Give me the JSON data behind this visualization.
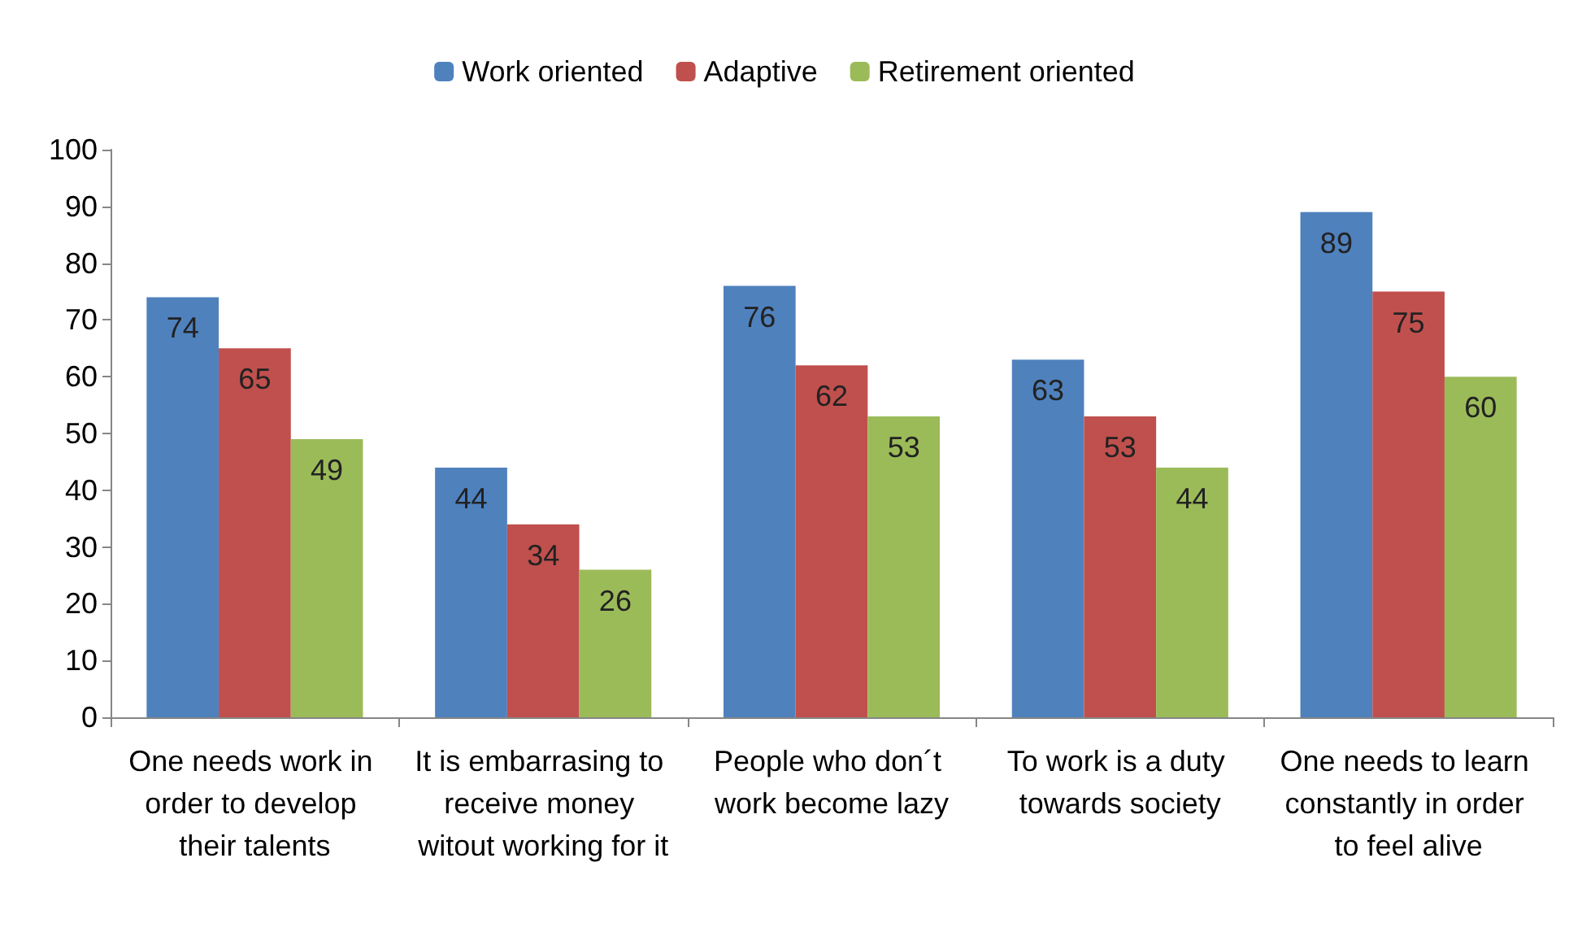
{
  "chart_data": {
    "type": "bar",
    "categories": [
      "One needs work in order to develop their talents",
      "It is embarrasing to receive money witout working for it",
      "People who don´t work become lazy",
      "To work is a duty towards society",
      "One needs to learn constantly in order to feel alive"
    ],
    "series": [
      {
        "name": "Work oriented",
        "color": "#4f81bd",
        "values": [
          74,
          44,
          76,
          63,
          89
        ]
      },
      {
        "name": "Adaptive",
        "color": "#c0504d",
        "values": [
          65,
          34,
          62,
          53,
          75
        ]
      },
      {
        "name": "Retirement oriented",
        "color": "#9bbb59",
        "values": [
          49,
          26,
          53,
          44,
          60
        ]
      }
    ],
    "ylim": [
      0,
      100
    ],
    "yticks": [
      0,
      10,
      20,
      30,
      40,
      50,
      60,
      70,
      80,
      90,
      100
    ],
    "grid": false,
    "legend": "top",
    "data_labels": true
  }
}
